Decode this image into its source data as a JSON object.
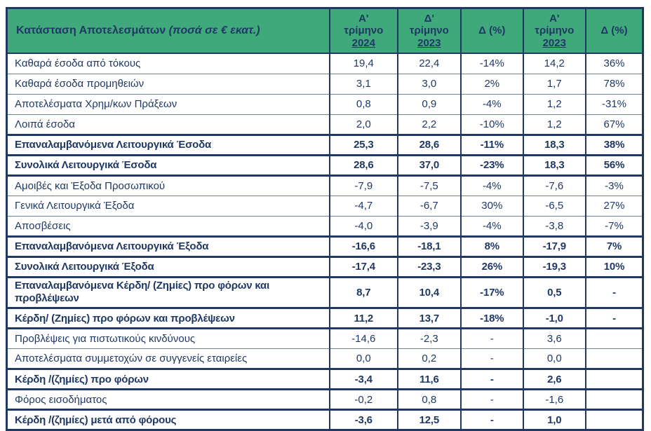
{
  "colors": {
    "header_green": "#3fa97c",
    "text_navy": "#1f3864",
    "grid_thin": "#6b7f9f",
    "grid_thick": "#1f3864"
  },
  "table": {
    "title_main": "Κατάσταση Αποτελεσμάτων",
    "title_note": "(ποσά σε € εκατ.)",
    "columns": [
      {
        "lines": [
          "Α'",
          "τρίμηνο"
        ],
        "year": "2024"
      },
      {
        "lines": [
          "Δ'",
          "τρίμηνο"
        ],
        "year": "2023"
      },
      {
        "lines": [
          "Δ (%)"
        ]
      },
      {
        "lines": [
          "Α'",
          "τρίμηνο"
        ],
        "year": "2023"
      },
      {
        "lines": [
          "Δ (%)"
        ]
      }
    ],
    "rows": [
      {
        "label": "Καθαρά έσοδα από τόκους",
        "values": [
          "19,4",
          "22,4",
          "-14%",
          "14,2",
          "36%"
        ],
        "bold": false
      },
      {
        "label": "Καθαρά έσοδα προμηθειών",
        "values": [
          "3,1",
          "3,0",
          "2%",
          "1,7",
          "78%"
        ],
        "bold": false
      },
      {
        "label": "Αποτελέσματα Χρημ/κων Πράξεων",
        "values": [
          "0,8",
          "0,9",
          "-4%",
          "1,2",
          "-31%"
        ],
        "bold": false
      },
      {
        "label": "Λοιπά έσοδα",
        "values": [
          "2,0",
          "2,2",
          "-10%",
          "1,2",
          "67%"
        ],
        "bold": false
      },
      {
        "label": "Επαναλαμβανόμενα Λειτουργικά Έσοδα",
        "values": [
          "25,3",
          "28,6",
          "-11%",
          "18,3",
          "38%"
        ],
        "bold": true
      },
      {
        "label": "Συνολικά Λειτουργικά Έσοδα",
        "values": [
          "28,6",
          "37,0",
          "-23%",
          "18,3",
          "56%"
        ],
        "bold": true
      },
      {
        "label": "Αμοιβές και Έξοδα Προσωπικού",
        "values": [
          "-7,9",
          "-7,5",
          "-4%",
          "-7,6",
          "-3%"
        ],
        "bold": false
      },
      {
        "label": "Γενικά Λειτουργικά Έξοδα",
        "values": [
          "-4,7",
          "-6,7",
          "30%",
          "-6,5",
          "27%"
        ],
        "bold": false
      },
      {
        "label": "Αποσβέσεις",
        "values": [
          "-4,0",
          "-3,9",
          "-4%",
          "-3,8",
          "-7%"
        ],
        "bold": false
      },
      {
        "label": "Επαναλαμβανόμενα Λειτουργικά Έξοδα",
        "values": [
          "-16,6",
          "-18,1",
          "8%",
          "-17,9",
          "7%"
        ],
        "bold": true
      },
      {
        "label": "Συνολικά Λειτουργικά Έξοδα",
        "values": [
          "-17,4",
          "-23,3",
          "26%",
          "-19,3",
          "10%"
        ],
        "bold": true
      },
      {
        "label": "Επαναλαμβανόμενα Κέρδη/ (Ζημίες) προ φόρων και προβλέψεων",
        "values": [
          "8,7",
          "10,4",
          "-17%",
          "0,5",
          "-"
        ],
        "bold": true,
        "tall": true
      },
      {
        "label": "Κέρδη/ (Ζημίες) προ φόρων και προβλέψεων",
        "values": [
          "11,2",
          "13,7",
          "-18%",
          "-1,0",
          "-"
        ],
        "bold": true
      },
      {
        "label": "Προβλέψεις για πιστωτικούς κινδύνους",
        "values": [
          "-14,6",
          "-2,3",
          "-",
          "3,6",
          ""
        ],
        "bold": false
      },
      {
        "label": "Αποτελέσματα συμμετοχών σε συγγενείς εταιρείες",
        "values": [
          "0,0",
          "0,2",
          "-",
          "0,0",
          ""
        ],
        "bold": false
      },
      {
        "label": "Κέρδη /(ζημίες) προ φόρων",
        "values": [
          "-3,4",
          "11,6",
          "-",
          "2,6",
          ""
        ],
        "bold": true
      },
      {
        "label": "Φόρος εισοδήματος",
        "values": [
          "-0,2",
          "0,8",
          "-",
          "-1,6",
          ""
        ],
        "bold": false
      },
      {
        "label": "Κέρδη /(ζημίες) μετά από φόρους",
        "values": [
          "-3,6",
          "12,5",
          "-",
          "1,0",
          ""
        ],
        "bold": true
      }
    ]
  }
}
